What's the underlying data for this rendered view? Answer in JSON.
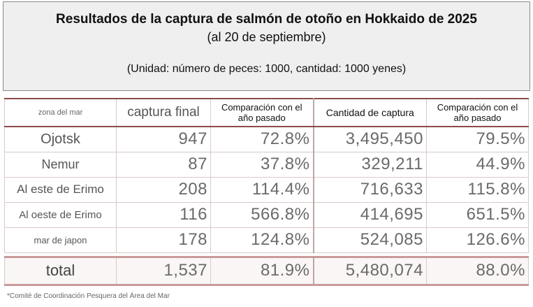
{
  "header": {
    "title": "Resultados de la captura de salmón de otoño en Hokkaido de 2025",
    "subtitle": "(al 20 de septiembre)",
    "unit_note": "(Unidad: número de peces: 1000, cantidad: 1000 yenes)"
  },
  "table": {
    "headers": {
      "zone": "zona del mar",
      "catch": "captura final",
      "catch_comparison": "Comparación con el año pasado",
      "amount": "Cantidad de captura",
      "amount_comparison": "Comparación con el año pasado"
    },
    "rows": [
      {
        "zone": "Ojotsk",
        "catch": "947",
        "catch_comparison": "72.8%",
        "amount": "3,495,450",
        "amount_comparison": "79.5%"
      },
      {
        "zone": "Nemur",
        "catch": "87",
        "catch_comparison": "37.8%",
        "amount": "329,211",
        "amount_comparison": "44.9%"
      },
      {
        "zone": "Al este de Erimo",
        "catch": "208",
        "catch_comparison": "114.4%",
        "amount": "716,633",
        "amount_comparison": "115.8%"
      },
      {
        "zone": "Al oeste de Erimo",
        "catch": "116",
        "catch_comparison": "566.8%",
        "amount": "414,695",
        "amount_comparison": "651.5%"
      },
      {
        "zone": "mar de japon",
        "catch": "178",
        "catch_comparison": "124.8%",
        "amount": "524,085",
        "amount_comparison": "126.6%"
      }
    ],
    "total": {
      "zone": "total",
      "catch": "1,537",
      "catch_comparison": "81.9%",
      "amount": "5,480,074",
      "amount_comparison": "88.0%"
    }
  },
  "footnote": "*Comité de Coordinación Pesquera del Área del Mar"
}
